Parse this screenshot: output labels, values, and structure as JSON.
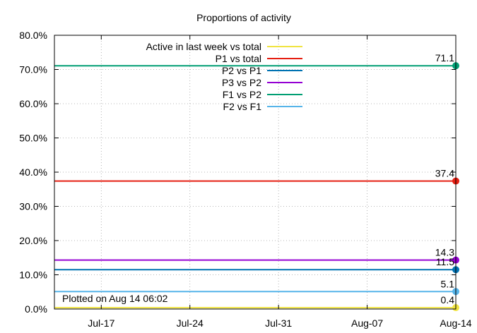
{
  "chart_data": {
    "type": "line",
    "title": "Proportions of activity",
    "xlabel": "",
    "ylabel": "",
    "x_ticks": [
      {
        "label": "Jul-17",
        "day": 17
      },
      {
        "label": "Jul-24",
        "day": 24
      },
      {
        "label": "Jul-31",
        "day": 31
      },
      {
        "label": "Aug-07",
        "day": 38
      },
      {
        "label": "Aug-14",
        "day": 45
      }
    ],
    "y_ticks": [
      "0.0%",
      "10.0%",
      "20.0%",
      "30.0%",
      "40.0%",
      "50.0%",
      "60.0%",
      "70.0%",
      "80.0%"
    ],
    "ylim": [
      0,
      80
    ],
    "xlim_days": [
      13.3,
      45
    ],
    "grid": true,
    "legend_position": "top-left",
    "note": "Plotted on Aug 14 06:02",
    "series": [
      {
        "name": "Active in last week vs total",
        "color": "#f0e442",
        "x": [
          13.3,
          45
        ],
        "values": [
          0.4,
          0.4
        ],
        "end_label": "0.4"
      },
      {
        "name": "P1 vs total",
        "color": "#e51e10",
        "x": [
          13.3,
          45
        ],
        "values": [
          37.4,
          37.4
        ],
        "end_label": "37.4"
      },
      {
        "name": "P2 vs P1",
        "color": "#0072b2",
        "x": [
          13.3,
          45
        ],
        "values": [
          11.5,
          11.5
        ],
        "end_label": "11.5"
      },
      {
        "name": "P3 vs P2",
        "color": "#9400d3",
        "x": [
          13.3,
          45
        ],
        "values": [
          14.3,
          14.3
        ],
        "end_label": "14.3"
      },
      {
        "name": "F1 vs P2",
        "color": "#009e73",
        "x": [
          13.3,
          45
        ],
        "values": [
          71.1,
          71.1
        ],
        "end_label": "71.1"
      },
      {
        "name": "F2 vs F1",
        "color": "#56b4e9",
        "x": [
          13.3,
          45
        ],
        "values": [
          5.1,
          5.1
        ],
        "end_label": "5.1"
      }
    ]
  }
}
